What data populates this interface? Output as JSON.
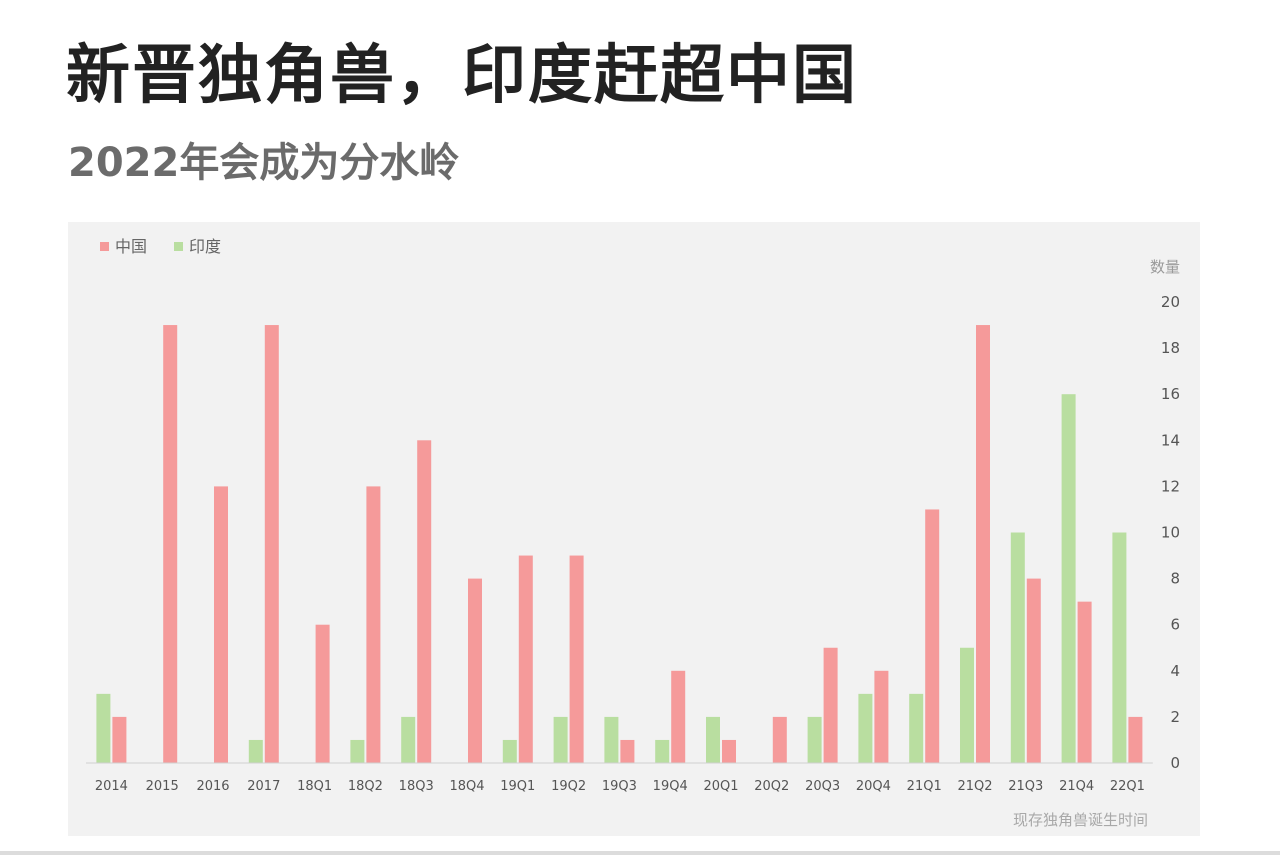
{
  "header": {
    "title": "新晋独角兽，印度赶超中国",
    "subtitle": "2022年会成为分水岭"
  },
  "chart_data": {
    "type": "bar",
    "categories": [
      "2014",
      "2015",
      "2016",
      "2017",
      "18Q1",
      "18Q2",
      "18Q3",
      "18Q4",
      "19Q1",
      "19Q2",
      "19Q3",
      "19Q4",
      "20Q1",
      "20Q2",
      "20Q3",
      "20Q4",
      "21Q1",
      "21Q2",
      "21Q3",
      "21Q4",
      "22Q1"
    ],
    "series": [
      {
        "name": "印度",
        "color": "#b9dea0",
        "values": [
          3,
          0,
          0,
          1,
          0,
          1,
          2,
          0,
          1,
          2,
          2,
          1,
          2,
          0,
          2,
          3,
          3,
          5,
          10,
          16,
          10
        ]
      },
      {
        "name": "中国",
        "color": "#f59a9a",
        "values": [
          2,
          19,
          12,
          19,
          6,
          12,
          14,
          8,
          9,
          9,
          1,
          4,
          1,
          2,
          5,
          4,
          11,
          19,
          8,
          7,
          2
        ]
      }
    ],
    "ylabel": "数量",
    "xlabel": "现存独角兽诞生时间",
    "ylim": [
      0,
      20
    ],
    "yticks": [
      0,
      2,
      4,
      6,
      8,
      10,
      12,
      14,
      16,
      18,
      20
    ],
    "y_axis_side": "right",
    "grid": false,
    "legend_position": "top-left",
    "legend_order": [
      "中国",
      "印度"
    ]
  }
}
